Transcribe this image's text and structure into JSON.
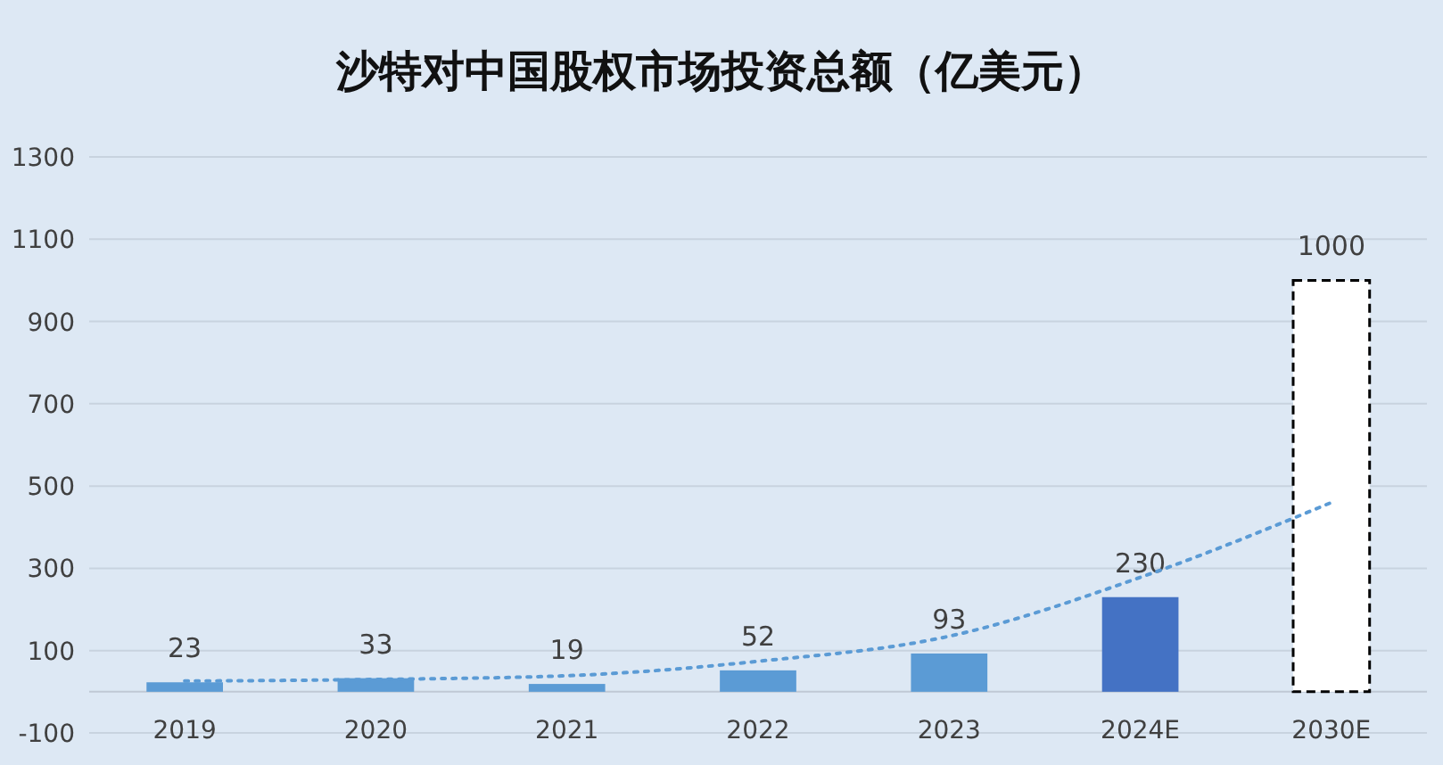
{
  "chart_data": {
    "type": "bar",
    "title": "沙特对中国股权市场投资总额（亿美元）",
    "categories": [
      "2019",
      "2020",
      "2021",
      "2022",
      "2023",
      "2024E",
      "2030E"
    ],
    "series": [
      {
        "values": [
          23,
          33,
          19,
          52,
          93,
          230,
          null
        ],
        "value_labels": [
          "23",
          "33",
          "19",
          "52",
          "93",
          "230",
          null
        ],
        "colors": [
          "#5b9bd5",
          "#5b9bd5",
          "#5b9bd5",
          "#5b9bd5",
          "#5b9bd5",
          "#4472c4",
          null
        ]
      },
      {
        "values": [
          null,
          null,
          null,
          null,
          null,
          null,
          1000
        ],
        "value_labels": [
          null,
          null,
          null,
          null,
          null,
          null,
          "1000"
        ],
        "color": "#ffffff",
        "line_style": "dashed"
      },
      {
        "type": "line",
        "values": [
          26,
          30,
          39,
          74,
          135,
          278,
          460
        ],
        "color": "#5b9bd5",
        "line_style": "dotted",
        "marker": "none"
      }
    ],
    "ylim": [
      -100,
      1300
    ],
    "yticks": [
      -100,
      100,
      300,
      500,
      700,
      900,
      1100,
      1300
    ],
    "grid": "y"
  }
}
